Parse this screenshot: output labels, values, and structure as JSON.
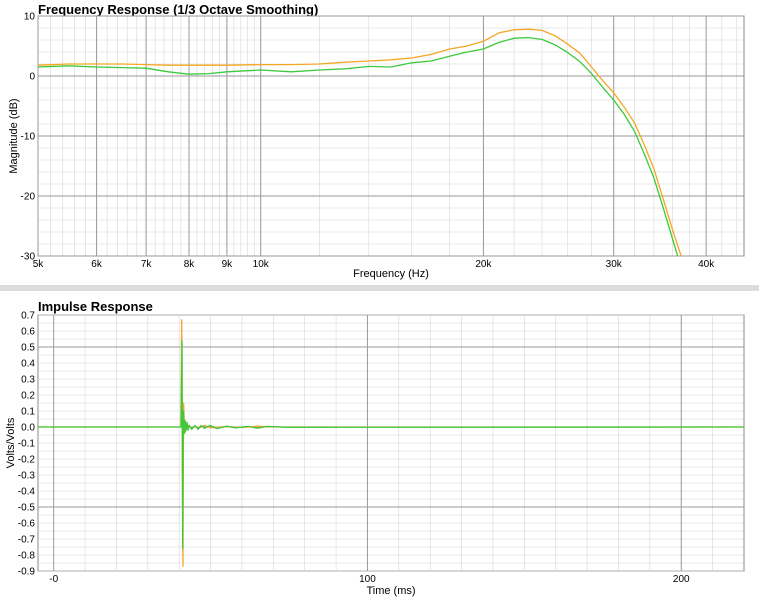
{
  "colors": {
    "orange": "#f5a623",
    "green": "#3cc93c",
    "grid_major": "#9a9a9a",
    "grid_minor": "#d6d6d6"
  },
  "chart_data": [
    {
      "type": "line",
      "title": "Frequency Response (1/3 Octave Smoothing)",
      "xlabel": "Frequency (Hz)",
      "ylabel": "Magnitude (dB)",
      "xscale": "log",
      "xlim": [
        5000,
        45000
      ],
      "ylim": [
        -30,
        10
      ],
      "xticks": [
        {
          "v": 5000,
          "label": "5k"
        },
        {
          "v": 6000,
          "label": "6k"
        },
        {
          "v": 7000,
          "label": "7k"
        },
        {
          "v": 8000,
          "label": "8k"
        },
        {
          "v": 9000,
          "label": "9k"
        },
        {
          "v": 10000,
          "label": "10k"
        },
        {
          "v": 20000,
          "label": "20k"
        },
        {
          "v": 30000,
          "label": "30k"
        },
        {
          "v": 40000,
          "label": "40k"
        }
      ],
      "yticks": [
        {
          "v": 10,
          "label": "10"
        },
        {
          "v": 0,
          "label": "0"
        },
        {
          "v": -10,
          "label": "-10"
        },
        {
          "v": -20,
          "label": "-20"
        },
        {
          "v": -30,
          "label": "-30"
        }
      ],
      "grid": true,
      "series": [
        {
          "color": "orange",
          "points": [
            [
              5000,
              1.8
            ],
            [
              5500,
              2.0
            ],
            [
              6000,
              2.0
            ],
            [
              6500,
              2.0
            ],
            [
              7000,
              1.9
            ],
            [
              7500,
              1.8
            ],
            [
              8000,
              1.8
            ],
            [
              8500,
              1.8
            ],
            [
              9000,
              1.8
            ],
            [
              10000,
              1.9
            ],
            [
              11000,
              1.9
            ],
            [
              12000,
              2.0
            ],
            [
              13000,
              2.3
            ],
            [
              14000,
              2.5
            ],
            [
              15000,
              2.7
            ],
            [
              16000,
              3.0
            ],
            [
              17000,
              3.6
            ],
            [
              18000,
              4.5
            ],
            [
              19000,
              5.0
            ],
            [
              20000,
              5.8
            ],
            [
              21000,
              7.2
            ],
            [
              22000,
              7.7
            ],
            [
              23000,
              7.8
            ],
            [
              24000,
              7.6
            ],
            [
              25000,
              6.7
            ],
            [
              26000,
              5.3
            ],
            [
              27000,
              3.8
            ],
            [
              28000,
              1.5
            ],
            [
              29000,
              -0.8
            ],
            [
              30000,
              -2.8
            ],
            [
              31000,
              -5.2
            ],
            [
              32000,
              -7.8
            ],
            [
              33000,
              -11.5
            ],
            [
              34000,
              -15.5
            ],
            [
              35000,
              -20.5
            ],
            [
              36000,
              -25.5
            ],
            [
              37000,
              -30
            ]
          ]
        },
        {
          "color": "green",
          "points": [
            [
              5000,
              1.5
            ],
            [
              5500,
              1.7
            ],
            [
              6000,
              1.5
            ],
            [
              6500,
              1.4
            ],
            [
              7000,
              1.3
            ],
            [
              7500,
              0.7
            ],
            [
              8000,
              0.3
            ],
            [
              8500,
              0.4
            ],
            [
              9000,
              0.7
            ],
            [
              10000,
              1.0
            ],
            [
              11000,
              0.7
            ],
            [
              12000,
              1.0
            ],
            [
              13000,
              1.2
            ],
            [
              14000,
              1.6
            ],
            [
              15000,
              1.5
            ],
            [
              16000,
              2.2
            ],
            [
              17000,
              2.5
            ],
            [
              18000,
              3.3
            ],
            [
              19000,
              4.0
            ],
            [
              20000,
              4.5
            ],
            [
              21000,
              5.6
            ],
            [
              22000,
              6.3
            ],
            [
              23000,
              6.4
            ],
            [
              24000,
              6.1
            ],
            [
              25000,
              5.2
            ],
            [
              26000,
              3.9
            ],
            [
              27000,
              2.4
            ],
            [
              28000,
              0.4
            ],
            [
              29000,
              -1.9
            ],
            [
              30000,
              -4.0
            ],
            [
              31000,
              -6.4
            ],
            [
              32000,
              -9.2
            ],
            [
              33000,
              -13.0
            ],
            [
              34000,
              -17.0
            ],
            [
              35000,
              -22.0
            ],
            [
              36000,
              -27.0
            ],
            [
              36600,
              -30
            ]
          ]
        }
      ]
    },
    {
      "type": "line",
      "title": "Impulse Response",
      "xlabel": "Time (ms)",
      "ylabel": "Volts/Volts",
      "xlim": [
        -5,
        220
      ],
      "ylim": [
        -0.9,
        0.7
      ],
      "xticks": [
        {
          "v": 0,
          "label": "-0"
        },
        {
          "v": 100,
          "label": "100"
        },
        {
          "v": 200,
          "label": "200"
        }
      ],
      "xminor_step": 10,
      "yticks": [
        {
          "v": 0.7,
          "label": "0.7"
        },
        {
          "v": 0.6,
          "label": "0.6"
        },
        {
          "v": 0.5,
          "label": "0.5"
        },
        {
          "v": 0.4,
          "label": "0.4"
        },
        {
          "v": 0.3,
          "label": "0.3"
        },
        {
          "v": 0.2,
          "label": "0.2"
        },
        {
          "v": 0.1,
          "label": "0.1"
        },
        {
          "v": 0.0,
          "label": "0.0"
        },
        {
          "v": -0.1,
          "label": "-0.1"
        },
        {
          "v": -0.2,
          "label": "-0.2"
        },
        {
          "v": -0.3,
          "label": "-0.3"
        },
        {
          "v": -0.4,
          "label": "-0.4"
        },
        {
          "v": -0.5,
          "label": "-0.5"
        },
        {
          "v": -0.6,
          "label": "-0.6"
        },
        {
          "v": -0.7,
          "label": "-0.7"
        },
        {
          "v": -0.8,
          "label": "-0.8"
        },
        {
          "v": -0.9,
          "label": "-0.9"
        }
      ],
      "grid": true,
      "series": [
        {
          "color": "orange",
          "points": [
            [
              -5,
              0
            ],
            [
              40.5,
              0
            ],
            [
              40.8,
              0.67
            ],
            [
              41.0,
              -0.2
            ],
            [
              41.2,
              -0.87
            ],
            [
              41.4,
              0.15
            ],
            [
              41.6,
              0.05
            ],
            [
              41.8,
              0.03
            ],
            [
              42.0,
              -0.03
            ],
            [
              42.3,
              0.02
            ],
            [
              42.6,
              -0.01
            ],
            [
              43,
              0.01
            ],
            [
              44,
              -0.01
            ],
            [
              45,
              0.005
            ],
            [
              46,
              -0.01
            ],
            [
              48,
              0.01
            ],
            [
              50,
              -0.005
            ],
            [
              55,
              0.003
            ],
            [
              60,
              -0.003
            ],
            [
              65,
              0.005
            ],
            [
              70,
              0
            ],
            [
              220,
              0
            ]
          ]
        },
        {
          "color": "green",
          "points": [
            [
              -5,
              0
            ],
            [
              40.6,
              0
            ],
            [
              40.9,
              0.54
            ],
            [
              41.1,
              -0.76
            ],
            [
              41.3,
              0.1
            ],
            [
              41.5,
              0.03
            ],
            [
              41.7,
              -0.04
            ],
            [
              41.9,
              0.04
            ],
            [
              42.2,
              -0.02
            ],
            [
              42.5,
              0.03
            ],
            [
              42.8,
              -0.02
            ],
            [
              43.2,
              0.01
            ],
            [
              44,
              -0.015
            ],
            [
              45,
              0.01
            ],
            [
              46,
              -0.015
            ],
            [
              47,
              0.01
            ],
            [
              48,
              -0.008
            ],
            [
              50,
              0.01
            ],
            [
              52,
              -0.01
            ],
            [
              55,
              0.005
            ],
            [
              58,
              -0.005
            ],
            [
              62,
              0.004
            ],
            [
              65,
              -0.008
            ],
            [
              68,
              0.004
            ],
            [
              75,
              -0.002
            ],
            [
              220,
              0
            ]
          ]
        }
      ]
    }
  ]
}
